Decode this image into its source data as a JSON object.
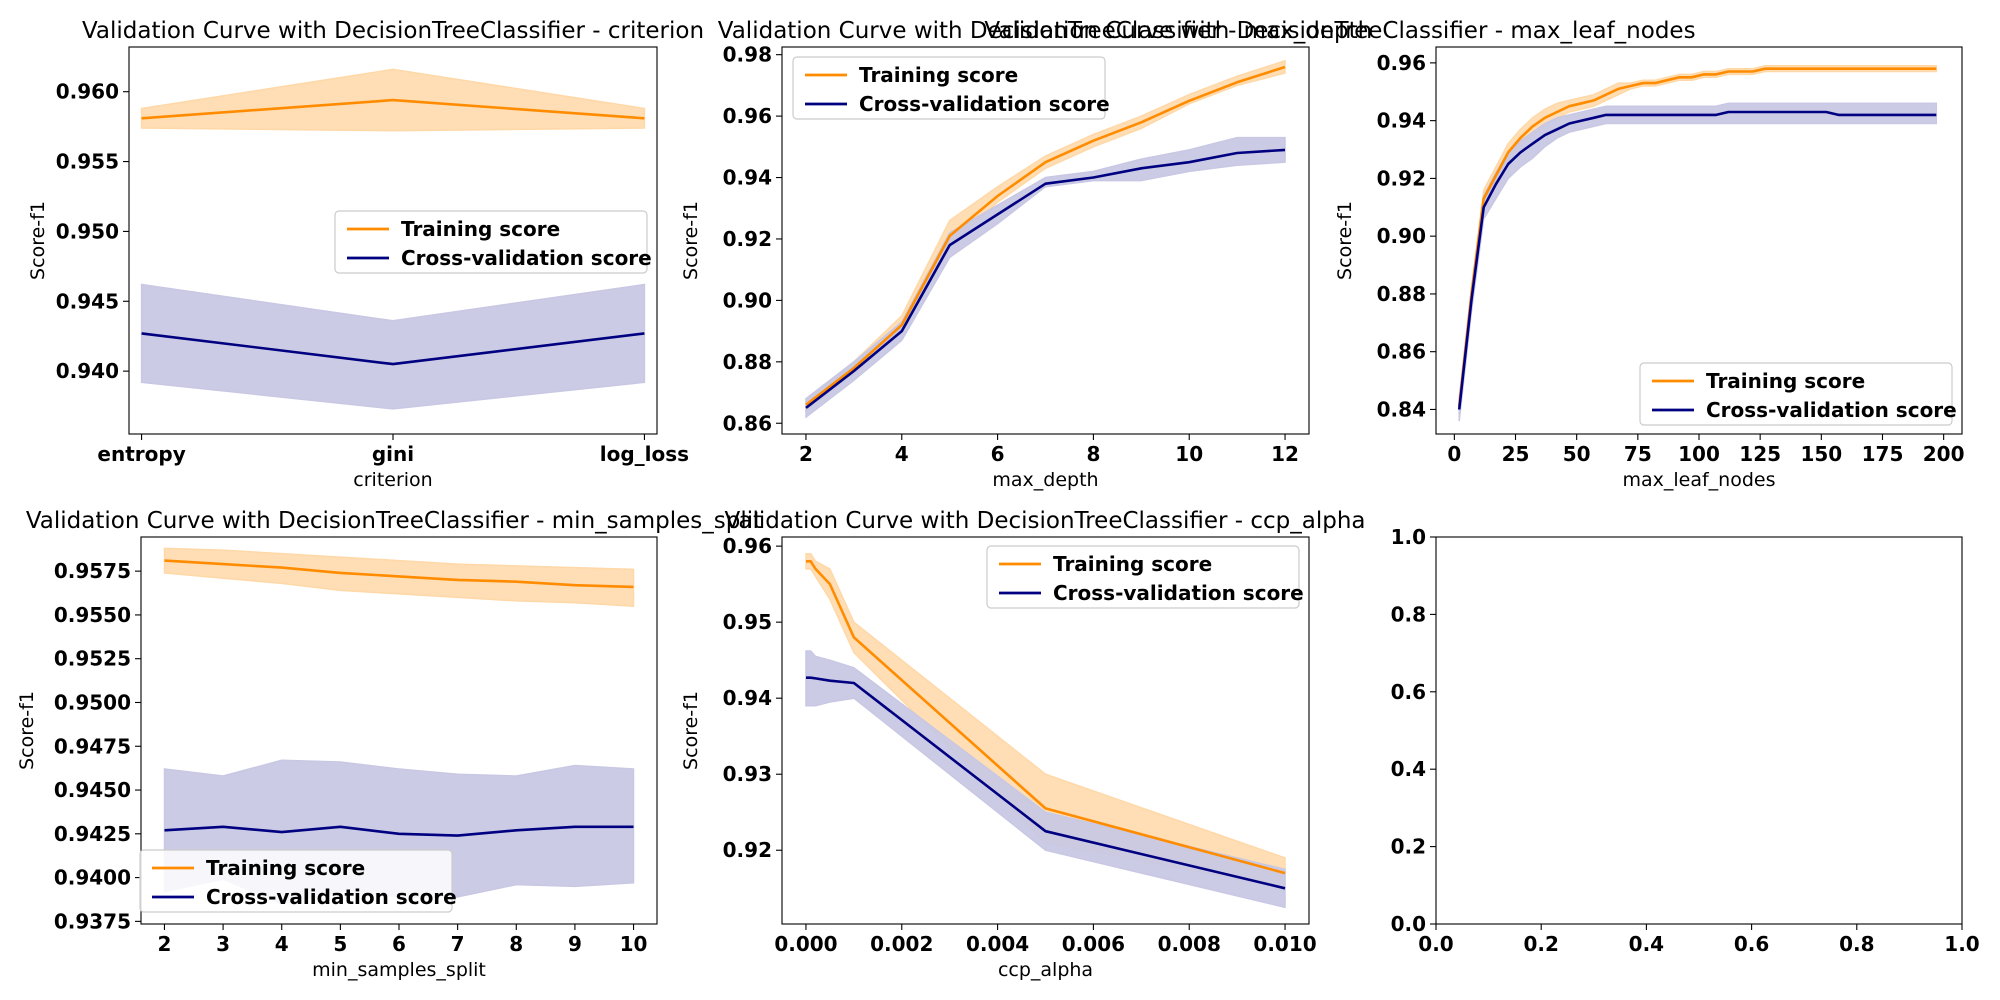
{
  "colors": {
    "train_line": "#ff8c00",
    "train_band": "#ffd8a8",
    "cv_line": "#000080",
    "cv_band": "#c8c8e4"
  },
  "chart_data": [
    {
      "type": "line",
      "title": "Validation Curve with DecisionTreeClassifier - criterion",
      "xlabel": "criterion",
      "ylabel": "Score-f1",
      "x_scale": "categorical",
      "categories": [
        "entropy",
        "gini",
        "log_loss"
      ],
      "xlim": [
        -0.05,
        2.05
      ],
      "ylim": [
        0.9355,
        0.9632
      ],
      "yticks": [
        0.94,
        0.945,
        0.95,
        0.955,
        0.96
      ],
      "ytick_labels": [
        "0.940",
        "0.945",
        "0.950",
        "0.955",
        "0.960"
      ],
      "legend": "center-right",
      "series": [
        {
          "name": "Training score",
          "x": [
            0,
            1,
            2
          ],
          "values": [
            0.9581,
            0.9594,
            0.9581
          ],
          "lower": [
            0.9574,
            0.9572,
            0.9574
          ],
          "upper": [
            0.9588,
            0.9616,
            0.9588
          ]
        },
        {
          "name": "Cross-validation score",
          "x": [
            0,
            1,
            2
          ],
          "values": [
            0.9427,
            0.9405,
            0.9427
          ],
          "lower": [
            0.9392,
            0.9373,
            0.9392
          ],
          "upper": [
            0.9462,
            0.9436,
            0.9462
          ]
        }
      ]
    },
    {
      "type": "line",
      "title": "Validation Curve with DecisionTreeClassifier - max_depth",
      "xlabel": "max_depth",
      "ylabel": "Score-f1",
      "xlim": [
        1.5,
        12.5
      ],
      "xticks": [
        2,
        4,
        6,
        8,
        10,
        12
      ],
      "xtick_labels": [
        "2",
        "4",
        "6",
        "8",
        "10",
        "12"
      ],
      "ylim": [
        0.8565,
        0.9825
      ],
      "yticks": [
        0.86,
        0.88,
        0.9,
        0.92,
        0.94,
        0.96,
        0.98
      ],
      "ytick_labels": [
        "0.86",
        "0.88",
        "0.90",
        "0.92",
        "0.94",
        "0.96",
        "0.98"
      ],
      "legend": "upper-left",
      "series": [
        {
          "name": "Training score",
          "x": [
            2,
            3,
            4,
            5,
            6,
            7,
            8,
            9,
            10,
            11,
            12
          ],
          "values": [
            0.866,
            0.878,
            0.892,
            0.921,
            0.934,
            0.945,
            0.952,
            0.958,
            0.965,
            0.971,
            0.976
          ],
          "lower": [
            0.864,
            0.876,
            0.89,
            0.918,
            0.932,
            0.943,
            0.95,
            0.956,
            0.964,
            0.97,
            0.974
          ],
          "upper": [
            0.868,
            0.88,
            0.895,
            0.926,
            0.937,
            0.947,
            0.954,
            0.96,
            0.967,
            0.973,
            0.978
          ]
        },
        {
          "name": "Cross-validation score",
          "x": [
            2,
            3,
            4,
            5,
            6,
            7,
            8,
            9,
            10,
            11,
            12
          ],
          "values": [
            0.865,
            0.877,
            0.89,
            0.918,
            0.928,
            0.938,
            0.94,
            0.943,
            0.945,
            0.948,
            0.949
          ],
          "lower": [
            0.862,
            0.874,
            0.887,
            0.914,
            0.925,
            0.937,
            0.939,
            0.939,
            0.942,
            0.944,
            0.945
          ],
          "upper": [
            0.868,
            0.88,
            0.893,
            0.922,
            0.931,
            0.94,
            0.942,
            0.946,
            0.949,
            0.953,
            0.953
          ]
        }
      ]
    },
    {
      "type": "line",
      "title": "Validation Curve with DecisionTreeClassifier - max_leaf_nodes",
      "xlabel": "max_leaf_nodes",
      "ylabel": "Score-f1",
      "xlim": [
        -7.5,
        207.5
      ],
      "xticks": [
        0,
        25,
        50,
        75,
        100,
        125,
        150,
        175,
        200
      ],
      "xtick_labels": [
        "0",
        "25",
        "50",
        "75",
        "100",
        "125",
        "150",
        "175",
        "200"
      ],
      "ylim": [
        0.8315,
        0.9655
      ],
      "yticks": [
        0.84,
        0.86,
        0.88,
        0.9,
        0.92,
        0.94,
        0.96
      ],
      "ytick_labels": [
        "0.84",
        "0.86",
        "0.88",
        "0.90",
        "0.92",
        "0.94",
        "0.96"
      ],
      "legend": "lower-right",
      "series": [
        {
          "name": "Training score",
          "x": [
            2,
            7,
            12,
            17,
            22,
            27,
            32,
            37,
            42,
            47,
            52,
            57,
            62,
            67,
            72,
            77,
            82,
            87,
            92,
            97,
            102,
            107,
            112,
            117,
            122,
            127,
            132,
            137,
            142,
            147,
            152,
            157,
            162,
            167,
            172,
            177,
            182,
            187,
            192,
            197
          ],
          "values": [
            0.841,
            0.88,
            0.913,
            0.921,
            0.929,
            0.934,
            0.938,
            0.941,
            0.943,
            0.945,
            0.946,
            0.947,
            0.949,
            0.951,
            0.952,
            0.953,
            0.953,
            0.954,
            0.955,
            0.955,
            0.956,
            0.956,
            0.957,
            0.957,
            0.957,
            0.958,
            0.958,
            0.958,
            0.958,
            0.958,
            0.958,
            0.958,
            0.958,
            0.958,
            0.958,
            0.958,
            0.958,
            0.958,
            0.958,
            0.958
          ],
          "lower": [
            0.839,
            0.878,
            0.91,
            0.918,
            0.926,
            0.931,
            0.935,
            0.938,
            0.941,
            0.943,
            0.944,
            0.945,
            0.947,
            0.949,
            0.951,
            0.952,
            0.952,
            0.953,
            0.954,
            0.954,
            0.955,
            0.955,
            0.956,
            0.956,
            0.956,
            0.957,
            0.957,
            0.957,
            0.957,
            0.957,
            0.957,
            0.957,
            0.957,
            0.957,
            0.957,
            0.957,
            0.957,
            0.957,
            0.957,
            0.957
          ],
          "upper": [
            0.843,
            0.882,
            0.916,
            0.924,
            0.932,
            0.937,
            0.941,
            0.944,
            0.946,
            0.947,
            0.948,
            0.949,
            0.951,
            0.953,
            0.953,
            0.954,
            0.954,
            0.955,
            0.956,
            0.956,
            0.957,
            0.957,
            0.958,
            0.958,
            0.958,
            0.959,
            0.959,
            0.959,
            0.959,
            0.959,
            0.959,
            0.959,
            0.959,
            0.959,
            0.959,
            0.959,
            0.959,
            0.959,
            0.959,
            0.959
          ]
        },
        {
          "name": "Cross-validation score",
          "x": [
            2,
            7,
            12,
            17,
            22,
            27,
            32,
            37,
            42,
            47,
            52,
            57,
            62,
            67,
            72,
            77,
            82,
            87,
            92,
            97,
            102,
            107,
            112,
            117,
            122,
            127,
            132,
            137,
            142,
            147,
            152,
            157,
            162,
            167,
            172,
            177,
            182,
            187,
            192,
            197
          ],
          "values": [
            0.84,
            0.878,
            0.91,
            0.918,
            0.925,
            0.929,
            0.932,
            0.935,
            0.937,
            0.939,
            0.94,
            0.941,
            0.942,
            0.942,
            0.942,
            0.942,
            0.942,
            0.942,
            0.942,
            0.942,
            0.942,
            0.942,
            0.943,
            0.943,
            0.943,
            0.943,
            0.943,
            0.943,
            0.943,
            0.943,
            0.943,
            0.942,
            0.942,
            0.942,
            0.942,
            0.942,
            0.942,
            0.942,
            0.942,
            0.942
          ],
          "lower": [
            0.836,
            0.874,
            0.906,
            0.913,
            0.92,
            0.924,
            0.927,
            0.931,
            0.934,
            0.936,
            0.937,
            0.938,
            0.939,
            0.939,
            0.939,
            0.939,
            0.939,
            0.939,
            0.939,
            0.939,
            0.939,
            0.939,
            0.939,
            0.939,
            0.939,
            0.939,
            0.939,
            0.939,
            0.939,
            0.939,
            0.939,
            0.939,
            0.939,
            0.939,
            0.939,
            0.939,
            0.939,
            0.939,
            0.939,
            0.939
          ],
          "upper": [
            0.844,
            0.882,
            0.914,
            0.922,
            0.929,
            0.933,
            0.936,
            0.939,
            0.941,
            0.942,
            0.943,
            0.944,
            0.945,
            0.945,
            0.945,
            0.945,
            0.945,
            0.945,
            0.945,
            0.945,
            0.945,
            0.945,
            0.946,
            0.946,
            0.946,
            0.946,
            0.946,
            0.946,
            0.946,
            0.946,
            0.946,
            0.946,
            0.946,
            0.946,
            0.946,
            0.946,
            0.946,
            0.946,
            0.946,
            0.946
          ]
        }
      ]
    },
    {
      "type": "line",
      "title": "Validation Curve with DecisionTreeClassifier - min_samples_split",
      "xlabel": "min_samples_split",
      "ylabel": "Score-f1",
      "xlim": [
        1.6,
        10.4
      ],
      "xticks": [
        2,
        3,
        4,
        5,
        6,
        7,
        8,
        9,
        10
      ],
      "xtick_labels": [
        "2",
        "3",
        "4",
        "5",
        "6",
        "7",
        "8",
        "9",
        "10"
      ],
      "ylim": [
        0.93735,
        0.95945
      ],
      "yticks": [
        0.9375,
        0.94,
        0.9425,
        0.945,
        0.9475,
        0.95,
        0.9525,
        0.955,
        0.9575
      ],
      "ytick_labels": [
        "0.9375",
        "0.9400",
        "0.9425",
        "0.9450",
        "0.9475",
        "0.9500",
        "0.9525",
        "0.9550",
        "0.9575"
      ],
      "legend": "lower-left",
      "series": [
        {
          "name": "Training score",
          "x": [
            2,
            3,
            4,
            5,
            6,
            7,
            8,
            9,
            10
          ],
          "values": [
            0.9581,
            0.9579,
            0.9577,
            0.9574,
            0.9572,
            0.957,
            0.9569,
            0.9567,
            0.9566
          ],
          "lower": [
            0.9574,
            0.9571,
            0.9568,
            0.9564,
            0.9562,
            0.956,
            0.9558,
            0.9557,
            0.9555
          ],
          "upper": [
            0.9588,
            0.9587,
            0.9585,
            0.9583,
            0.9581,
            0.9579,
            0.9578,
            0.9577,
            0.9576
          ]
        },
        {
          "name": "Cross-validation score",
          "x": [
            2,
            3,
            4,
            5,
            6,
            7,
            8,
            9,
            10
          ],
          "values": [
            0.9427,
            0.9429,
            0.9426,
            0.9429,
            0.9425,
            0.9424,
            0.9427,
            0.9429,
            0.9429
          ],
          "lower": [
            0.9392,
            0.9399,
            0.9385,
            0.9392,
            0.9389,
            0.9389,
            0.9396,
            0.9395,
            0.9397
          ],
          "upper": [
            0.9462,
            0.9458,
            0.9467,
            0.9466,
            0.9462,
            0.9459,
            0.9458,
            0.9464,
            0.9462
          ]
        }
      ]
    },
    {
      "type": "line",
      "title": "Validation Curve with DecisionTreeClassifier - ccp_alpha",
      "xlabel": "ccp_alpha",
      "ylabel": "Score-f1",
      "xlim": [
        -0.0005,
        0.0105
      ],
      "xticks": [
        0.0,
        0.002,
        0.004,
        0.006,
        0.008,
        0.01
      ],
      "xtick_labels": [
        "0.000",
        "0.002",
        "0.004",
        "0.006",
        "0.008",
        "0.010"
      ],
      "ylim": [
        0.9103,
        0.9612
      ],
      "yticks": [
        0.92,
        0.93,
        0.94,
        0.95,
        0.96
      ],
      "ytick_labels": [
        "0.92",
        "0.93",
        "0.94",
        "0.95",
        "0.96"
      ],
      "legend": "upper-right",
      "series": [
        {
          "name": "Training score",
          "x": [
            0.0,
            0.0001,
            0.0002,
            0.0005,
            0.001,
            0.005,
            0.01
          ],
          "values": [
            0.958,
            0.958,
            0.957,
            0.955,
            0.948,
            0.9255,
            0.917
          ],
          "lower": [
            0.957,
            0.957,
            0.956,
            0.953,
            0.946,
            0.921,
            0.915
          ],
          "upper": [
            0.959,
            0.959,
            0.958,
            0.957,
            0.95,
            0.93,
            0.919
          ]
        },
        {
          "name": "Cross-validation score",
          "x": [
            0.0,
            0.0001,
            0.0002,
            0.0005,
            0.001,
            0.005,
            0.01
          ],
          "values": [
            0.9427,
            0.9427,
            0.9426,
            0.9423,
            0.942,
            0.9225,
            0.915
          ],
          "lower": [
            0.939,
            0.939,
            0.939,
            0.9395,
            0.94,
            0.92,
            0.9125
          ],
          "upper": [
            0.9462,
            0.9462,
            0.9455,
            0.945,
            0.944,
            0.925,
            0.9175
          ]
        }
      ]
    },
    {
      "type": "line",
      "title": "",
      "xlabel": "",
      "ylabel": "",
      "xlim": [
        0.0,
        1.0
      ],
      "xticks": [
        0.0,
        0.2,
        0.4,
        0.6,
        0.8,
        1.0
      ],
      "xtick_labels": [
        "0.0",
        "0.2",
        "0.4",
        "0.6",
        "0.8",
        "1.0"
      ],
      "ylim": [
        0.0,
        1.0
      ],
      "yticks": [
        0.0,
        0.2,
        0.4,
        0.6,
        0.8,
        1.0
      ],
      "ytick_labels": [
        "0.0",
        "0.2",
        "0.4",
        "0.6",
        "0.8",
        "1.0"
      ],
      "legend": "none",
      "series": []
    }
  ]
}
